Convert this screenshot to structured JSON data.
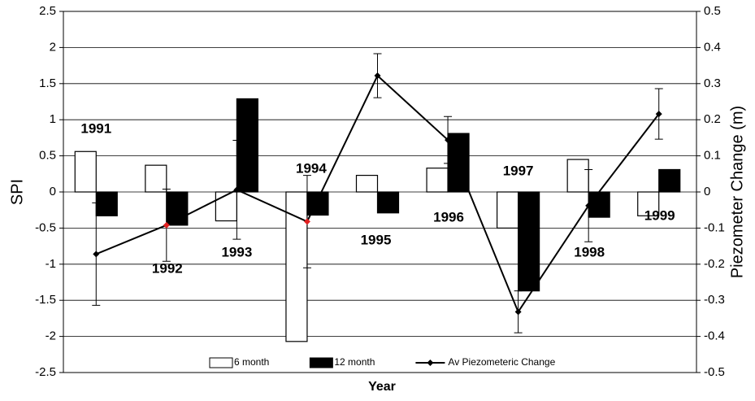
{
  "chart_data": {
    "type": "bar_line",
    "x_label": "Year",
    "y_label": "SPI",
    "y2_label": "Piezometer Change (m)",
    "categories": [
      "1991",
      "1992",
      "1993",
      "1994",
      "1995",
      "1996",
      "1997",
      "1998",
      "1999"
    ],
    "series": [
      {
        "name": "6 month",
        "type": "bar",
        "color": "#ffffff",
        "values": [
          0.56,
          0.37,
          -0.4,
          -2.07,
          0.23,
          0.33,
          -0.5,
          0.45,
          -0.33
        ]
      },
      {
        "name": "12 month",
        "type": "bar",
        "color": "#000000",
        "values": [
          -0.33,
          -0.46,
          1.29,
          -0.32,
          -0.29,
          0.81,
          -1.37,
          -0.35,
          0.31
        ]
      },
      {
        "name": "Av Piezometeric Change",
        "type": "line",
        "axis": "y2",
        "color": "#000000",
        "marker_colors": [
          "#000000",
          "#e02020",
          "#000000",
          "#e02020",
          "#000000",
          "#000000",
          "#000000",
          "#000000",
          "#000000"
        ],
        "values": [
          -0.172,
          -0.092,
          0.006,
          -0.082,
          0.322,
          0.144,
          -0.332,
          -0.038,
          0.216
        ],
        "errors": [
          0.142,
          0.1,
          0.137,
          0.128,
          0.061,
          0.065,
          0.058,
          0.1,
          0.07
        ]
      }
    ],
    "ylim": [
      -2.5,
      2.5
    ],
    "yticks": [
      -2.5,
      -2,
      -1.5,
      -1,
      -0.5,
      0,
      0.5,
      1,
      1.5,
      2,
      2.5
    ],
    "y2lim": [
      -0.5,
      0.5
    ],
    "y2ticks": [
      -0.5,
      -0.4,
      -0.3,
      -0.2,
      -0.1,
      0,
      0.1,
      0.2,
      0.3,
      0.4,
      0.5
    ],
    "grid": true,
    "legend": "bottom"
  }
}
